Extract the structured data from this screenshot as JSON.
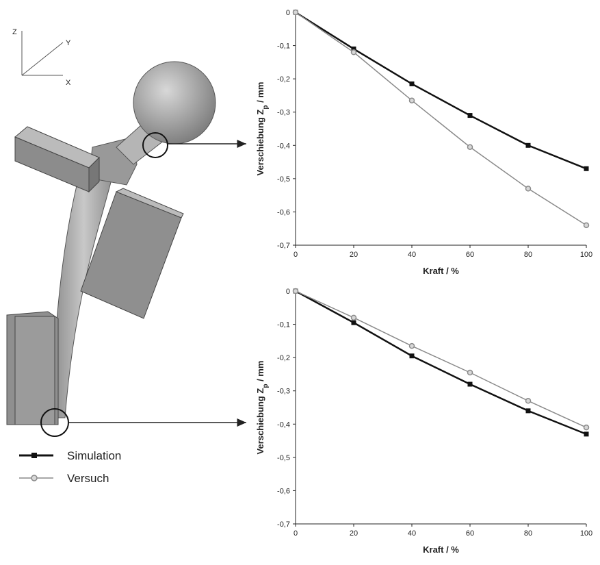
{
  "illustration": {
    "axes": [
      "Z",
      "Y",
      "X"
    ]
  },
  "chart_data": [
    {
      "type": "line",
      "x": [
        0,
        20,
        40,
        60,
        80,
        100
      ],
      "series": [
        {
          "name": "Simulation",
          "color": "#111111",
          "marker": "square",
          "values": [
            0,
            -0.11,
            -0.215,
            -0.31,
            -0.4,
            -0.47
          ]
        },
        {
          "name": "Versuch",
          "color": "#8a8a8a",
          "marker": "circle",
          "values": [
            0,
            -0.12,
            -0.265,
            -0.405,
            -0.53,
            -0.64
          ]
        }
      ],
      "xlim": [
        0,
        100
      ],
      "ylim": [
        -0.7,
        0
      ],
      "xticks": [
        0,
        20,
        40,
        60,
        80,
        100
      ],
      "yticks": [
        0,
        {
          "value": -0.1,
          "label": "-0,1"
        },
        {
          "value": -0.2,
          "label": "-0,2"
        },
        {
          "value": -0.3,
          "label": "-0,3"
        },
        {
          "value": -0.4,
          "label": "-0,4"
        },
        {
          "value": -0.5,
          "label": "-0,5"
        },
        {
          "value": -0.6,
          "label": "-0,6"
        },
        {
          "value": -0.7,
          "label": "-0,7"
        }
      ],
      "xlabel": "Kraft / %",
      "ylabel": "Verschiebung Z",
      "ylabel_sub": "p",
      "ylabel_unit": " / mm"
    },
    {
      "type": "line",
      "x": [
        0,
        20,
        40,
        60,
        80,
        100
      ],
      "series": [
        {
          "color": "#111111",
          "marker": "square",
          "values": [
            0,
            -0.095,
            -0.195,
            -0.28,
            -0.36,
            -0.43
          ]
        },
        {
          "color": "#8a8a8a",
          "marker": "circle",
          "values": [
            0,
            -0.08,
            -0.165,
            -0.245,
            -0.33,
            -0.41
          ]
        }
      ],
      "xlim": [
        0,
        100
      ],
      "ylim": [
        -0.7,
        0
      ],
      "xticks": [
        0,
        20,
        40,
        60,
        80,
        100
      ],
      "yticks": [
        0,
        {
          "value": -0.1,
          "label": "-0,1"
        },
        {
          "value": -0.2,
          "label": "-0,2"
        },
        {
          "value": -0.3,
          "label": "-0,3"
        },
        {
          "value": -0.4,
          "label": "-0,4"
        },
        {
          "value": -0.5,
          "label": "-0,5"
        },
        {
          "value": -0.6,
          "label": "-0,6"
        },
        {
          "value": -0.7,
          "label": "-0,7"
        }
      ],
      "xlabel": "Kraft / %",
      "ylabel": "Verschiebung Z",
      "ylabel_sub": "p",
      "ylabel_unit": " / mm"
    }
  ]
}
